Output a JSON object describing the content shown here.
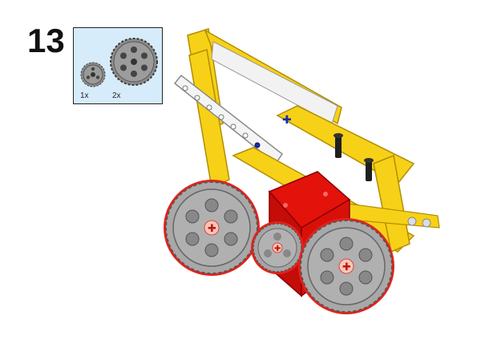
{
  "step": {
    "number": "13"
  },
  "parts": [
    {
      "icon": "small-gear-icon",
      "quantity": "1x"
    },
    {
      "icon": "large-gear-icon",
      "quantity": "2x"
    }
  ],
  "colors": {
    "background": "#ffffff",
    "parts_box": "#d6ecfb",
    "beam_yellow": "#f7d117",
    "beam_white": "#f2f2f2",
    "gear_gray": "#a8a8a8",
    "block_red": "#e3120b",
    "pin_blue": "#1b2aa8",
    "connector_dark": "#2b2b2b"
  }
}
